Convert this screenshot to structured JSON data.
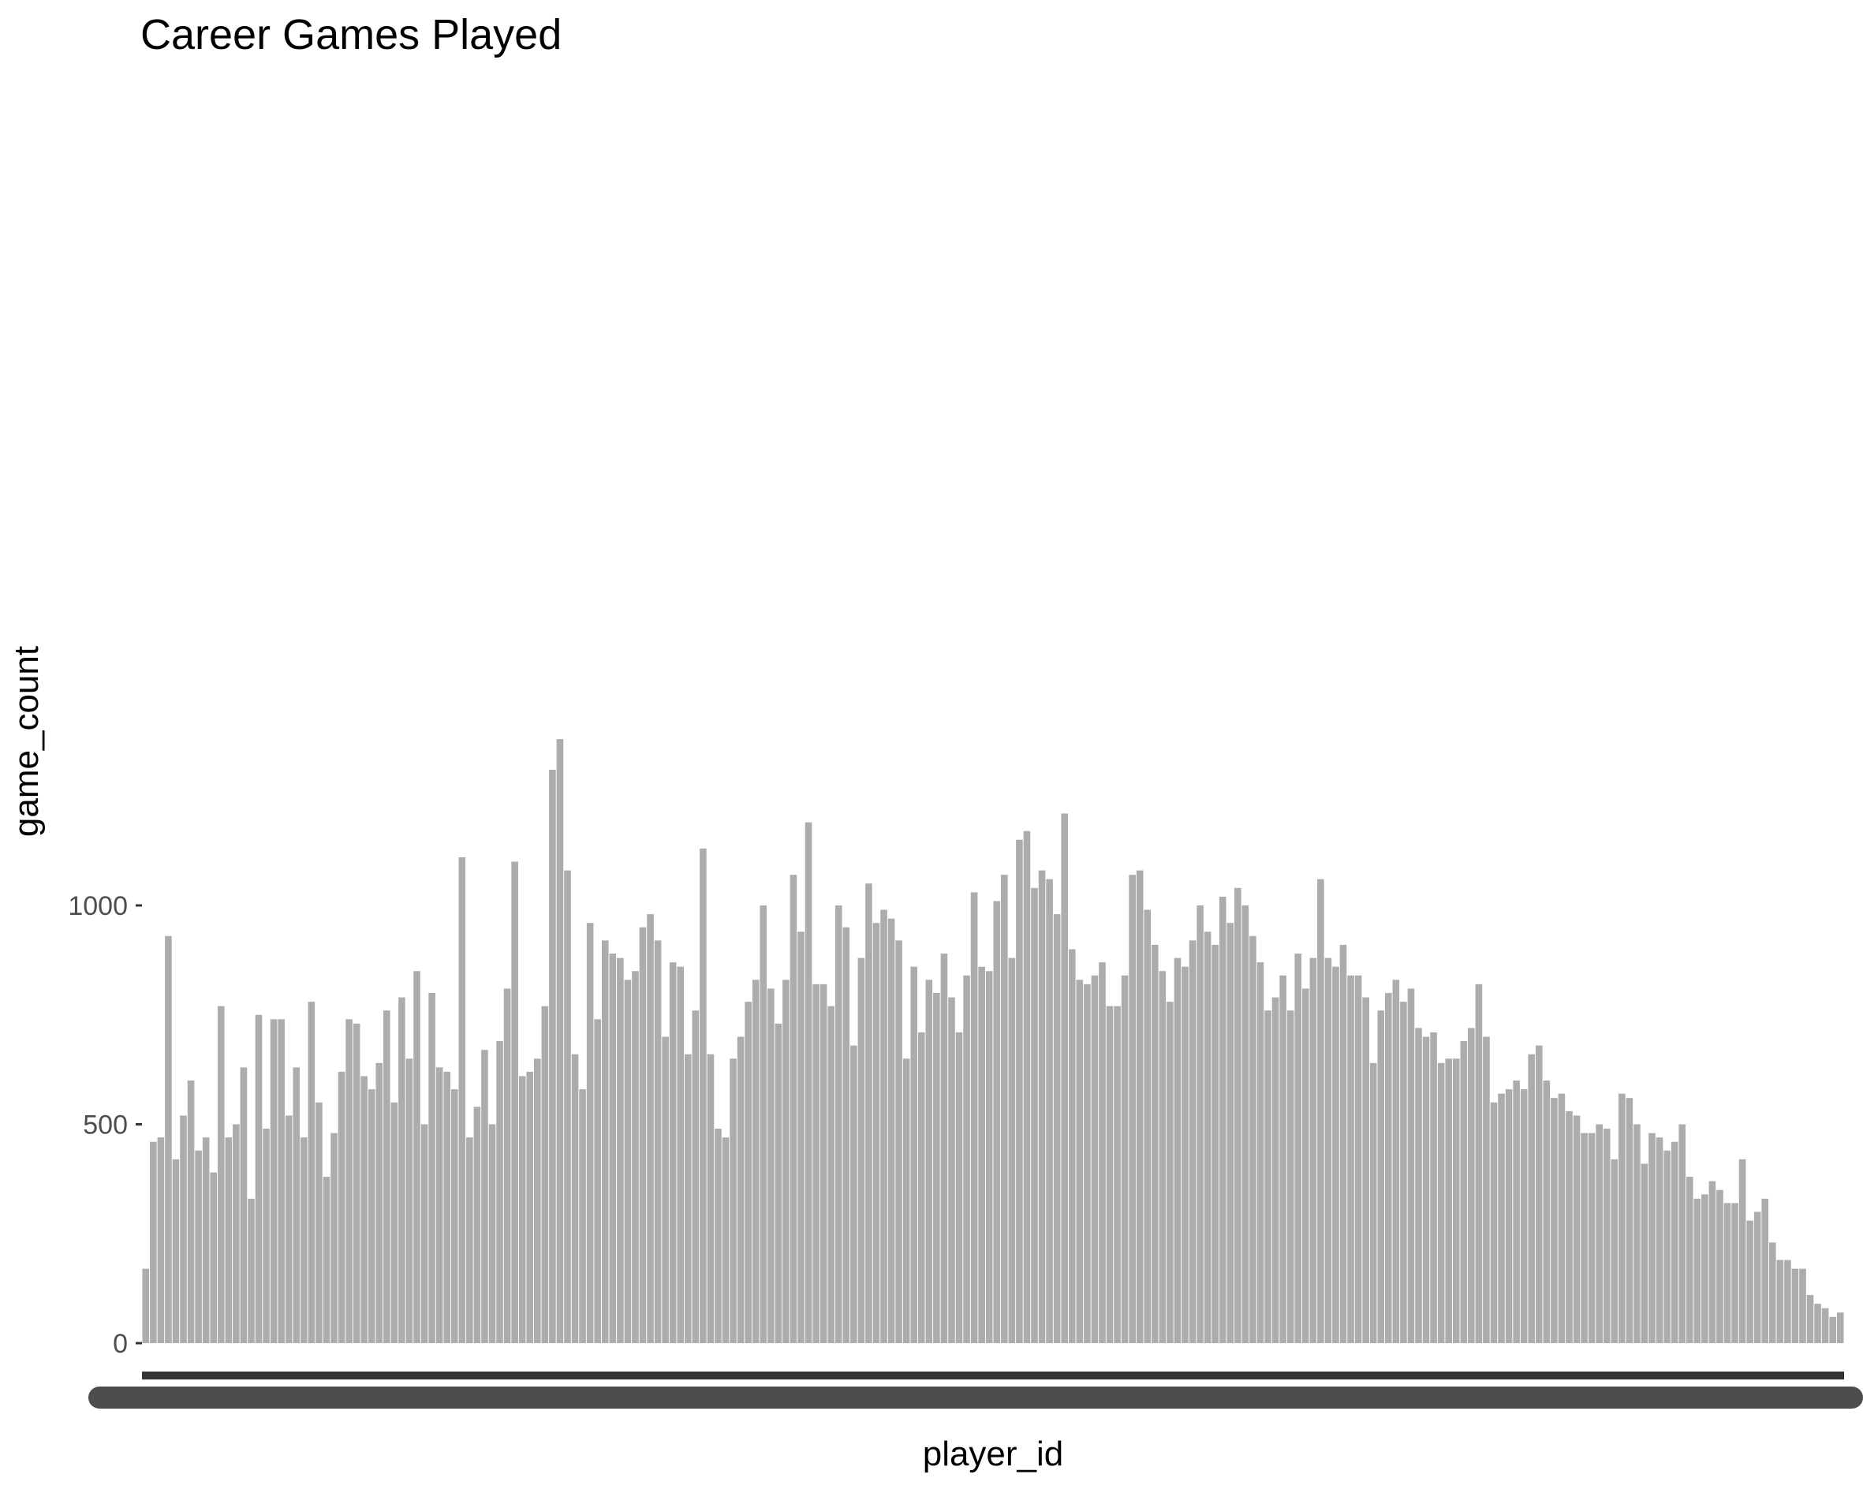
{
  "chart_data": {
    "type": "bar",
    "title": "Career Games Played",
    "xlabel": "player_id",
    "ylabel": "game_count",
    "ylim": [
      0,
      1380
    ],
    "yticks": [
      0,
      500,
      1000
    ],
    "grid": false,
    "legend": "none",
    "bar_color": "#595959",
    "bar_opacity": 0.5,
    "x_tick_color": "#4d4d4d",
    "x_tick_labels_legible": false,
    "series": [
      {
        "values": [
          170,
          460,
          470,
          930,
          420,
          520,
          600,
          440,
          470,
          390,
          770,
          470,
          500,
          630,
          330,
          750,
          490,
          740,
          740,
          520,
          630,
          470,
          780,
          550,
          380,
          480,
          620,
          740,
          730,
          610,
          580,
          640,
          760,
          550,
          790,
          650,
          850,
          500,
          800,
          630,
          620,
          580,
          1110,
          470,
          540,
          670,
          500,
          690,
          810,
          1100,
          610,
          620,
          650,
          770,
          1310,
          1380,
          1080,
          660,
          580,
          960,
          740,
          920,
          890,
          880,
          830,
          850,
          950,
          980,
          920,
          700,
          870,
          860,
          660,
          760,
          1130,
          660,
          490,
          470,
          650,
          700,
          780,
          830,
          1000,
          810,
          730,
          830,
          1070,
          940,
          1190,
          820,
          820,
          770,
          1000,
          950,
          680,
          880,
          1050,
          960,
          990,
          970,
          920,
          650,
          860,
          710,
          830,
          800,
          890,
          790,
          710,
          840,
          1030,
          860,
          850,
          1010,
          1070,
          880,
          1150,
          1170,
          1040,
          1080,
          1060,
          980,
          1210,
          900,
          830,
          820,
          840,
          870,
          770,
          770,
          840,
          1070,
          1080,
          990,
          910,
          850,
          780,
          880,
          860,
          920,
          1000,
          940,
          910,
          1020,
          960,
          1040,
          1000,
          930,
          870,
          760,
          790,
          840,
          760,
          890,
          810,
          880,
          1060,
          880,
          860,
          910,
          840,
          840,
          790,
          640,
          760,
          800,
          830,
          780,
          810,
          720,
          700,
          710,
          640,
          650,
          650,
          690,
          720,
          820,
          700,
          550,
          570,
          580,
          600,
          580,
          660,
          680,
          600,
          560,
          570,
          530,
          520,
          480,
          480,
          500,
          490,
          420,
          570,
          560,
          500,
          410,
          480,
          470,
          440,
          460,
          500,
          380,
          330,
          340,
          370,
          350,
          320,
          320,
          420,
          280,
          300,
          330,
          230,
          190,
          190,
          170,
          170,
          110,
          90,
          80,
          60,
          70
        ],
        "color": "#595959"
      }
    ]
  }
}
